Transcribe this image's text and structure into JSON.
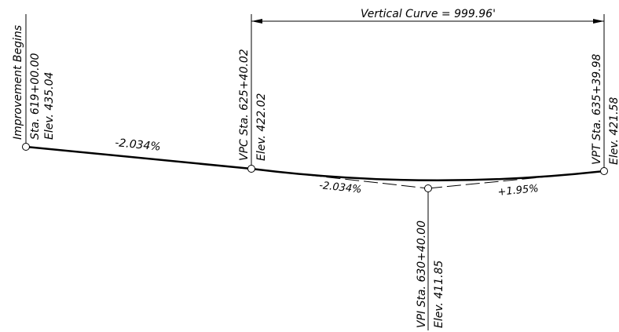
{
  "vertical_curve": {
    "label": "Vertical Curve = 999.96'"
  },
  "points": {
    "improvement_begins": {
      "title": "Improvement Begins",
      "station": "Sta. 619+00.00",
      "elevation": "Elev. 435.04"
    },
    "vpc": {
      "station": "VPC Sta. 625+40.02",
      "elevation": "Elev. 422.02"
    },
    "vpi": {
      "station": "VPI Sta. 630+40.00",
      "elevation": "Elev. 411.85"
    },
    "vpt": {
      "station": "VPT Sta. 635+39.98",
      "elevation": "Elev. 421.58"
    }
  },
  "grades": {
    "initial": "-2.034%",
    "tangent_in": "-2.034%",
    "tangent_out": "+1.95%"
  },
  "colors": {
    "ink": "#000000",
    "background": "#ffffff"
  }
}
